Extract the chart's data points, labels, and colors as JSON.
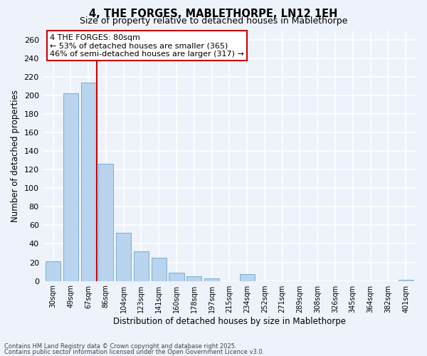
{
  "title": "4, THE FORGES, MABLETHORPE, LN12 1EH",
  "subtitle": "Size of property relative to detached houses in Mablethorpe",
  "xlabel": "Distribution of detached houses by size in Mablethorpe",
  "ylabel": "Number of detached properties",
  "categories": [
    "30sqm",
    "49sqm",
    "67sqm",
    "86sqm",
    "104sqm",
    "123sqm",
    "141sqm",
    "160sqm",
    "178sqm",
    "197sqm",
    "215sqm",
    "234sqm",
    "252sqm",
    "271sqm",
    "289sqm",
    "308sqm",
    "326sqm",
    "345sqm",
    "364sqm",
    "382sqm",
    "401sqm"
  ],
  "values": [
    21,
    202,
    214,
    126,
    52,
    32,
    25,
    9,
    5,
    3,
    0,
    7,
    0,
    0,
    0,
    0,
    0,
    0,
    0,
    0,
    1
  ],
  "bar_color": "#b8d4ee",
  "bar_edge_color": "#7aadd4",
  "vline_color": "#cc0000",
  "vline_x_index": 2.5,
  "annotation_title": "4 THE FORGES: 80sqm",
  "annotation_line1": "← 53% of detached houses are smaller (365)",
  "annotation_line2": "46% of semi-detached houses are larger (317) →",
  "ylim": [
    0,
    270
  ],
  "yticks": [
    0,
    20,
    40,
    60,
    80,
    100,
    120,
    140,
    160,
    180,
    200,
    220,
    240,
    260
  ],
  "footer1": "Contains HM Land Registry data © Crown copyright and database right 2025.",
  "footer2": "Contains public sector information licensed under the Open Government Licence v3.0.",
  "bg_color": "#eef2fb",
  "plot_bg_color": "#eef2fb",
  "title_fontsize": 10.5,
  "subtitle_fontsize": 9
}
